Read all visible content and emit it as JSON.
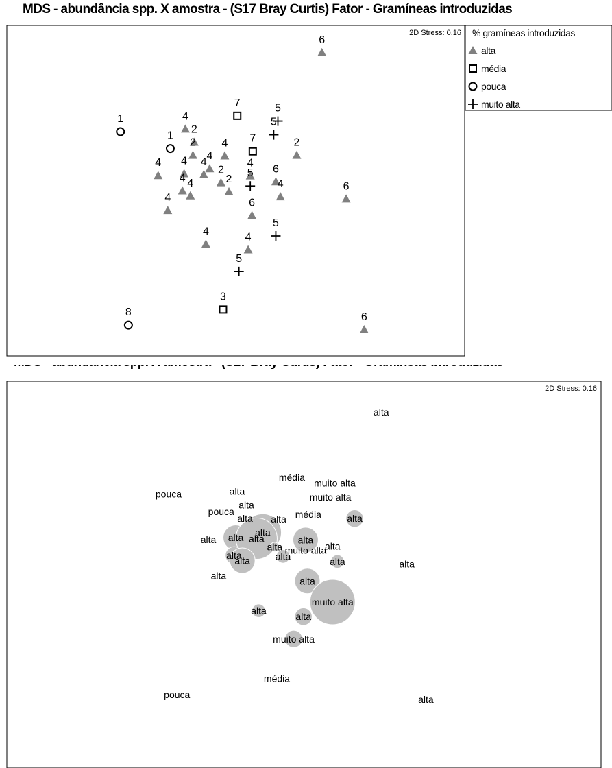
{
  "title": "MDS - abundância spp. X amostra - (S17 Bray Curtis) Fator - Gramíneas introduzidas",
  "chart_data": [
    {
      "type": "scatter",
      "stress": "2D Stress: 0.16",
      "legend": {
        "title": "% gramíneas introduzidas",
        "position": "right",
        "entries": [
          {
            "label": "alta",
            "marker": "triangle",
            "color": "#808080"
          },
          {
            "label": "média",
            "marker": "square",
            "color": "#000000"
          },
          {
            "label": "pouca",
            "marker": "circle",
            "color": "#000000"
          },
          {
            "label": "muito alta",
            "marker": "plus",
            "color": "#000000"
          }
        ]
      },
      "points": [
        {
          "x": 6.05,
          "y": 9.43,
          "group": "alta",
          "label": "6"
        },
        {
          "x": 4.03,
          "y": 7.41,
          "group": "média",
          "label": "7"
        },
        {
          "x": 5.0,
          "y": 7.24,
          "group": "muito alta",
          "label": "5"
        },
        {
          "x": 4.9,
          "y": 6.8,
          "group": "muito alta",
          "label": "5"
        },
        {
          "x": 1.24,
          "y": 6.9,
          "group": "pouca",
          "label": "1"
        },
        {
          "x": 2.79,
          "y": 6.98,
          "group": "alta",
          "label": "4"
        },
        {
          "x": 2.43,
          "y": 6.36,
          "group": "pouca",
          "label": "1"
        },
        {
          "x": 3.0,
          "y": 6.56,
          "group": "alta",
          "label": "2"
        },
        {
          "x": 2.97,
          "y": 6.14,
          "group": "alta",
          "label": "2"
        },
        {
          "x": 4.4,
          "y": 6.27,
          "group": "média",
          "label": "7"
        },
        {
          "x": 5.45,
          "y": 6.14,
          "group": "alta",
          "label": "2"
        },
        {
          "x": 3.73,
          "y": 6.12,
          "group": "alta",
          "label": "4"
        },
        {
          "x": 2.14,
          "y": 5.49,
          "group": "alta",
          "label": "4"
        },
        {
          "x": 2.76,
          "y": 5.55,
          "group": "alta",
          "label": "4"
        },
        {
          "x": 3.37,
          "y": 5.71,
          "group": "alta",
          "label": "4"
        },
        {
          "x": 3.23,
          "y": 5.52,
          "group": "alta",
          "label": "4"
        },
        {
          "x": 4.34,
          "y": 5.48,
          "group": "alta",
          "label": "4"
        },
        {
          "x": 2.72,
          "y": 5.0,
          "group": "alta",
          "label": "4"
        },
        {
          "x": 2.91,
          "y": 4.84,
          "group": "alta",
          "label": "4"
        },
        {
          "x": 3.64,
          "y": 5.26,
          "group": "alta",
          "label": "2"
        },
        {
          "x": 3.83,
          "y": 4.97,
          "group": "alta",
          "label": "2"
        },
        {
          "x": 4.34,
          "y": 5.16,
          "group": "muito alta",
          "label": "5"
        },
        {
          "x": 4.95,
          "y": 5.29,
          "group": "alta",
          "label": "6"
        },
        {
          "x": 5.06,
          "y": 4.81,
          "group": "alta",
          "label": "4"
        },
        {
          "x": 6.63,
          "y": 4.74,
          "group": "alta",
          "label": "6"
        },
        {
          "x": 2.37,
          "y": 4.37,
          "group": "alta",
          "label": "4"
        },
        {
          "x": 4.38,
          "y": 4.21,
          "group": "alta",
          "label": "6"
        },
        {
          "x": 4.95,
          "y": 3.56,
          "group": "muito alta",
          "label": "5"
        },
        {
          "x": 3.28,
          "y": 3.29,
          "group": "alta",
          "label": "4"
        },
        {
          "x": 4.29,
          "y": 3.11,
          "group": "alta",
          "label": "4"
        },
        {
          "x": 4.07,
          "y": 2.42,
          "group": "muito alta",
          "label": "5"
        },
        {
          "x": 3.69,
          "y": 1.2,
          "group": "média",
          "label": "3"
        },
        {
          "x": 1.43,
          "y": 0.7,
          "group": "pouca",
          "label": "8"
        },
        {
          "x": 7.06,
          "y": 0.55,
          "group": "alta",
          "label": "6"
        }
      ]
    },
    {
      "type": "scatter",
      "stress": "2D Stress: 0.16",
      "points": [
        {
          "x": 6.05,
          "y": 9.43,
          "label": "alta",
          "bubble": 0
        },
        {
          "x": 4.03,
          "y": 7.41,
          "label": "média",
          "bubble": 0
        },
        {
          "x": 5.0,
          "y": 7.24,
          "label": "muito alta",
          "bubble": 0
        },
        {
          "x": 4.9,
          "y": 6.8,
          "label": "muito alta",
          "bubble": 0
        },
        {
          "x": 1.24,
          "y": 6.9,
          "label": "pouca",
          "bubble": 0
        },
        {
          "x": 2.79,
          "y": 6.98,
          "label": "alta",
          "bubble": 0
        },
        {
          "x": 2.43,
          "y": 6.36,
          "label": "pouca",
          "bubble": 0
        },
        {
          "x": 3.0,
          "y": 6.56,
          "label": "alta",
          "bubble": 0
        },
        {
          "x": 2.97,
          "y": 6.14,
          "label": "alta",
          "bubble": 0
        },
        {
          "x": 4.4,
          "y": 6.27,
          "label": "média",
          "bubble": 0
        },
        {
          "x": 5.45,
          "y": 6.14,
          "label": "alta",
          "bubble": 3
        },
        {
          "x": 3.73,
          "y": 6.12,
          "label": "alta",
          "bubble": 0
        },
        {
          "x": 2.14,
          "y": 5.49,
          "label": "alta",
          "bubble": 0
        },
        {
          "x": 2.76,
          "y": 5.55,
          "label": "alta",
          "bubble": 5
        },
        {
          "x": 3.37,
          "y": 5.71,
          "label": "alta",
          "bubble": 8
        },
        {
          "x": 3.23,
          "y": 5.52,
          "label": "alta",
          "bubble": 9
        },
        {
          "x": 4.34,
          "y": 5.48,
          "label": "alta",
          "bubble": 5
        },
        {
          "x": 2.72,
          "y": 5.0,
          "label": "alta",
          "bubble": 3
        },
        {
          "x": 2.91,
          "y": 4.84,
          "label": "alta",
          "bubble": 5
        },
        {
          "x": 3.64,
          "y": 5.26,
          "label": "alta",
          "bubble": 1
        },
        {
          "x": 3.83,
          "y": 4.97,
          "label": "alta",
          "bubble": 2
        },
        {
          "x": 4.34,
          "y": 5.16,
          "label": "muito alta",
          "bubble": 0
        },
        {
          "x": 4.95,
          "y": 5.29,
          "label": "alta",
          "bubble": 0
        },
        {
          "x": 5.06,
          "y": 4.81,
          "label": "alta",
          "bubble": 2
        },
        {
          "x": 6.63,
          "y": 4.74,
          "label": "alta",
          "bubble": 0
        },
        {
          "x": 2.37,
          "y": 4.37,
          "label": "alta",
          "bubble": 0
        },
        {
          "x": 4.38,
          "y": 4.21,
          "label": "alta",
          "bubble": 5
        },
        {
          "x": 4.95,
          "y": 3.56,
          "label": "muito alta",
          "bubble": 10
        },
        {
          "x": 3.28,
          "y": 3.29,
          "label": "alta",
          "bubble": 2
        },
        {
          "x": 4.29,
          "y": 3.11,
          "label": "alta",
          "bubble": 3
        },
        {
          "x": 4.07,
          "y": 2.42,
          "label": "muito alta",
          "bubble": 3
        },
        {
          "x": 3.69,
          "y": 1.2,
          "label": "média",
          "bubble": 0
        },
        {
          "x": 1.43,
          "y": 0.7,
          "label": "pouca",
          "bubble": 0
        },
        {
          "x": 7.06,
          "y": 0.55,
          "label": "alta",
          "bubble": 0
        }
      ]
    }
  ]
}
